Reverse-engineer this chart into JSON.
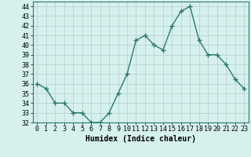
{
  "x": [
    0,
    1,
    2,
    3,
    4,
    5,
    6,
    7,
    8,
    9,
    10,
    11,
    12,
    13,
    14,
    15,
    16,
    17,
    18,
    19,
    20,
    21,
    22,
    23
  ],
  "y": [
    36,
    35.5,
    34,
    34,
    33,
    33,
    32,
    32,
    33,
    35,
    37,
    40.5,
    41,
    40,
    39.5,
    42,
    43.5,
    44,
    40.5,
    39,
    39,
    38,
    36.5,
    35.5
  ],
  "line_color": "#2d7a6a",
  "marker": "+",
  "marker_size": 4,
  "bg_color": "#d6f0ee",
  "grid_color": "#b0d0cc",
  "xlabel": "Humidex (Indice chaleur)",
  "ylim": [
    32,
    44.5
  ],
  "xlim": [
    -0.5,
    23.5
  ],
  "yticks": [
    32,
    33,
    34,
    35,
    36,
    37,
    38,
    39,
    40,
    41,
    42,
    43,
    44
  ],
  "xticks": [
    0,
    1,
    2,
    3,
    4,
    5,
    6,
    7,
    8,
    9,
    10,
    11,
    12,
    13,
    14,
    15,
    16,
    17,
    18,
    19,
    20,
    21,
    22,
    23
  ],
  "xlabel_fontsize": 7,
  "tick_fontsize": 6,
  "line_width": 1.0,
  "marker_edge_width": 1.0
}
